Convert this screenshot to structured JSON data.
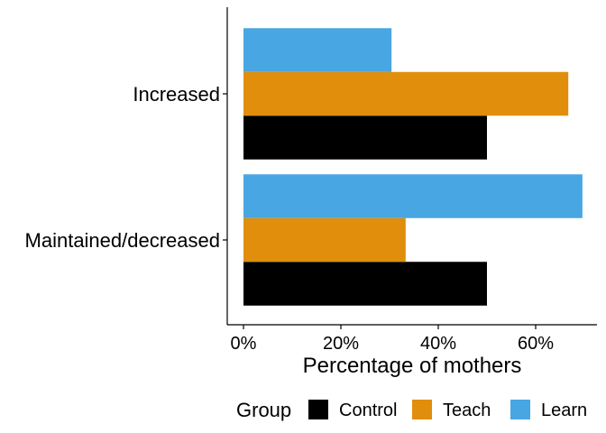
{
  "chart_data": {
    "type": "bar",
    "orientation": "horizontal",
    "title": "",
    "xlabel": "Percentage of mothers",
    "ylabel": "",
    "categories": [
      "Increased",
      "Maintained/decreased"
    ],
    "series": [
      {
        "name": "Control",
        "color": "#000000",
        "values": [
          50.0,
          50.0
        ]
      },
      {
        "name": "Teach",
        "color": "#E08E0B",
        "values": [
          66.7,
          33.3
        ]
      },
      {
        "name": "Learn",
        "color": "#48A6E2",
        "values": [
          30.4,
          69.6
        ]
      }
    ],
    "x_ticks": [
      0,
      20,
      40,
      60
    ],
    "x_tick_labels": [
      "0%",
      "20%",
      "40%",
      "60%"
    ],
    "xlim": [
      -3,
      72
    ],
    "grid": false,
    "legend": {
      "title": "Group",
      "position": "bottom"
    }
  }
}
